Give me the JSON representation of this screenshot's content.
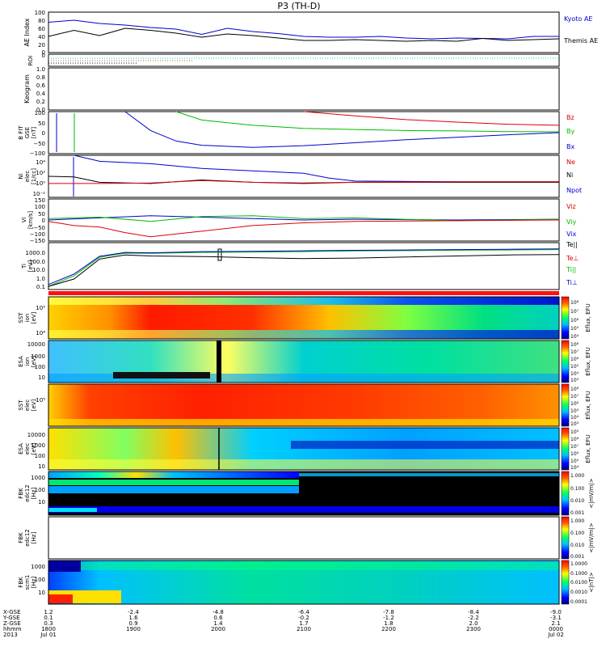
{
  "chart_data": {
    "type": "line",
    "title": "P3 (TH-D)",
    "panels": [
      {
        "id": "ae",
        "ylabel": [
          "AE Index"
        ],
        "ticks": [
          "100",
          "80",
          "60",
          "40",
          "20",
          "0"
        ],
        "legend": [
          {
            "text": "Kyoto AE",
            "color": "#0000cc"
          },
          {
            "text": "Themis AE",
            "color": "#000000"
          }
        ],
        "series": [
          {
            "name": "Kyoto AE",
            "color": "#0000cc",
            "x": [
              0,
              0.05,
              0.1,
              0.15,
              0.2,
              0.25,
              0.3,
              0.35,
              0.4,
              0.45,
              0.5,
              0.55,
              0.6,
              0.65,
              0.7,
              0.75,
              0.8,
              0.85,
              0.9,
              0.95,
              1
            ],
            "y": [
              75,
              80,
              72,
              68,
              62,
              58,
              45,
              60,
              52,
              47,
              40,
              38,
              38,
              40,
              36,
              34,
              36,
              35,
              34,
              40,
              40
            ]
          },
          {
            "name": "Themis AE",
            "color": "#000000",
            "x": [
              0,
              0.05,
              0.1,
              0.15,
              0.2,
              0.25,
              0.3,
              0.35,
              0.4,
              0.45,
              0.5,
              0.55,
              0.6,
              0.65,
              0.7,
              0.75,
              0.8,
              0.85,
              0.9,
              0.95,
              1
            ],
            "y": [
              40,
              55,
              42,
              60,
              55,
              48,
              38,
              46,
              42,
              36,
              30,
              30,
              32,
              30,
              28,
              30,
              28,
              35,
              30,
              32,
              34
            ]
          }
        ]
      },
      {
        "id": "roi",
        "ylabel": [
          "ROI"
        ],
        "ticks": [
          "0"
        ],
        "legend": []
      },
      {
        "id": "keogram",
        "ylabel": [
          "Keogram"
        ],
        "ticks": [
          "1.0",
          "0.8",
          "0.6",
          "0.4",
          "0.2",
          "0.0"
        ],
        "legend": []
      },
      {
        "id": "bfield",
        "ylabel": [
          "B FIT",
          "GSE",
          "[nT]"
        ],
        "ticks": [
          "100",
          "50",
          "0",
          "−50",
          "−100"
        ],
        "legend": [
          {
            "text": "Bz",
            "color": "#dd0000"
          },
          {
            "text": "By",
            "color": "#00bb00"
          },
          {
            "text": "Bx",
            "color": "#0000cc"
          }
        ],
        "series": [
          {
            "name": "Bz",
            "color": "#dd0000",
            "x": [
              0.5,
              0.6,
              0.7,
              0.8,
              0.9,
              1
            ],
            "y": [
              100,
              80,
              62,
              50,
              40,
              35
            ]
          },
          {
            "name": "By",
            "color": "#00bb00",
            "x": [
              0.25,
              0.3,
              0.4,
              0.5,
              0.6,
              0.7,
              0.8,
              0.9,
              1
            ],
            "y": [
              100,
              60,
              35,
              20,
              15,
              10,
              8,
              5,
              4
            ]
          },
          {
            "name": "Bx",
            "color": "#0000cc",
            "x": [
              0.15,
              0.2,
              0.25,
              0.3,
              0.4,
              0.5,
              0.6,
              0.7,
              0.8,
              0.9,
              1
            ],
            "y": [
              100,
              10,
              -40,
              -60,
              -70,
              -62,
              -48,
              -34,
              -22,
              -10,
              0
            ]
          }
        ]
      },
      {
        "id": "density",
        "ylabel": [
          "Ni",
          "elec",
          "[1/cc]"
        ],
        "ticks": [
          "10⁴",
          "10²",
          "10⁰",
          "10⁻²"
        ],
        "legend": [
          {
            "text": "Ne",
            "color": "#dd0000"
          },
          {
            "text": "Ni",
            "color": "#000000"
          },
          {
            "text": "Npot",
            "color": "#0000cc"
          }
        ],
        "series": [
          {
            "name": "Npot",
            "color": "#0000cc",
            "x": [
              0.05,
              0.1,
              0.2,
              0.3,
              0.4,
              0.5,
              0.55,
              0.6,
              0.8,
              1
            ],
            "y": [
              5,
              4,
              3.6,
              2.8,
              2.4,
              2.0,
              1.2,
              0.7,
              0.6,
              0.6
            ]
          },
          {
            "name": "Ni",
            "color": "#000000",
            "x": [
              0,
              0.05,
              0.1,
              0.2,
              0.3,
              0.4,
              0.5,
              0.6,
              0.8,
              1
            ],
            "y": [
              1.5,
              1.4,
              0.5,
              0.3,
              0.9,
              0.5,
              0.3,
              0.5,
              0.5,
              0.5
            ]
          },
          {
            "name": "Ne",
            "color": "#dd0000",
            "x": [
              0,
              0.1,
              0.2,
              0.3,
              0.4,
              0.5,
              0.6,
              0.8,
              1
            ],
            "y": [
              0.3,
              0.3,
              0.4,
              0.8,
              0.5,
              0.4,
              0.5,
              0.6,
              0.6
            ]
          }
        ]
      },
      {
        "id": "velocity",
        "ylabel": [
          "Vi",
          "[km/s]"
        ],
        "ticks": [
          "150",
          "100",
          "50",
          "0",
          "−50",
          "−100",
          "−150"
        ],
        "legend": [
          {
            "text": "Viz",
            "color": "#dd0000"
          },
          {
            "text": "Viy",
            "color": "#00bb00"
          },
          {
            "text": "Vix",
            "color": "#0000cc"
          }
        ],
        "series": [
          {
            "name": "Vix",
            "color": "#0000cc",
            "x": [
              0,
              0.1,
              0.2,
              0.3,
              0.4,
              0.5,
              0.6,
              0.8,
              1
            ],
            "y": [
              0,
              15,
              30,
              20,
              10,
              0,
              5,
              0,
              5
            ]
          },
          {
            "name": "Viy",
            "color": "#00bb00",
            "x": [
              0,
              0.1,
              0.2,
              0.3,
              0.4,
              0.5,
              0.6,
              0.8,
              1
            ],
            "y": [
              10,
              20,
              -10,
              25,
              30,
              10,
              15,
              -5,
              5
            ]
          },
          {
            "name": "Viz",
            "color": "#dd0000",
            "x": [
              0,
              0.05,
              0.1,
              0.15,
              0.2,
              0.25,
              0.3,
              0.4,
              0.5,
              0.6,
              0.8,
              1
            ],
            "y": [
              -10,
              -40,
              -50,
              -90,
              -120,
              -100,
              -80,
              -40,
              -20,
              -10,
              -5,
              0
            ]
          }
        ]
      },
      {
        "id": "temperature",
        "ylabel": [
          "Ti",
          "[eV]"
        ],
        "ticks": [
          "1000.0",
          "100.0",
          "10.0",
          "1.0",
          "0.1"
        ],
        "legend": [
          {
            "text": "Te||",
            "color": "#000000"
          },
          {
            "text": "Te⊥",
            "color": "#dd0000"
          },
          {
            "text": "Ti||",
            "color": "#00bb00"
          },
          {
            "text": "Ti⊥",
            "color": "#0000cc"
          }
        ],
        "series": [
          {
            "name": "Ti||",
            "color": "#00bb00",
            "x": [
              0,
              0.05,
              0.1,
              0.15,
              0.2,
              0.3,
              0.4,
              0.5,
              0.6,
              0.7,
              0.8,
              0.9,
              1
            ],
            "y": [
              0.2,
              2,
              120,
              300,
              280,
              350,
              380,
              420,
              480,
              520,
              560,
              600,
              650
            ]
          },
          {
            "name": "Ti⊥",
            "color": "#0000cc",
            "x": [
              0,
              0.05,
              0.1,
              0.15,
              0.2,
              0.3,
              0.4,
              0.5,
              0.6,
              0.7,
              0.8,
              0.9,
              1
            ],
            "y": [
              0.3,
              3,
              150,
              350,
              320,
              420,
              450,
              500,
              550,
              600,
              650,
              700,
              750
            ]
          },
          {
            "name": "Te||",
            "color": "#000000",
            "x": [
              0,
              0.05,
              0.1,
              0.15,
              0.2,
              0.3,
              0.4,
              0.5,
              0.6,
              0.7,
              0.8,
              0.9,
              1
            ],
            "y": [
              0.2,
              1,
              80,
              200,
              160,
              140,
              110,
              90,
              100,
              130,
              160,
              200,
              220
            ]
          }
        ]
      },
      {
        "id": "sst_ion",
        "ylabel": [
          "SST",
          "ion",
          "[eV]"
        ],
        "ticks": [
          "10⁵",
          "10⁴"
        ],
        "colorbar": {
          "label": "Eflux, EFU",
          "ticks": [
            "10⁸",
            "10⁷",
            "10⁶",
            "10⁵",
            "10⁴"
          ]
        }
      },
      {
        "id": "esa_ion",
        "ylabel": [
          "ESA",
          "ion",
          "[eV]"
        ],
        "ticks": [
          "10000",
          "1000",
          "100",
          "10"
        ],
        "colorbar": {
          "label": "Eflux, EFU",
          "ticks": [
            "10⁸",
            "10⁷",
            "10⁶",
            "10⁵",
            "10⁴",
            "10³"
          ]
        }
      },
      {
        "id": "sst_elec",
        "ylabel": [
          "SST",
          "elec",
          "[eV]"
        ],
        "ticks": [
          "10⁵"
        ],
        "colorbar": {
          "label": "Eflux, EFU",
          "ticks": [
            "10⁸",
            "10⁷",
            "10⁶",
            "10⁵",
            "10⁴",
            "10³"
          ]
        }
      },
      {
        "id": "esa_elec",
        "ylabel": [
          "ESA",
          "elec",
          "[eV]"
        ],
        "ticks": [
          "10000",
          "1000",
          "100",
          "10"
        ],
        "colorbar": {
          "label": "Eflux, EFU",
          "ticks": [
            "10⁹",
            "10⁸",
            "10⁷",
            "10⁶",
            "10⁵",
            "10⁴"
          ]
        }
      },
      {
        "id": "fbk_edc12_a",
        "ylabel": [
          "FBK",
          "edc12",
          "[Hz]"
        ],
        "ticks": [
          "1000",
          "100",
          "10"
        ],
        "colorbar": {
          "label": "<|mV/m|>",
          "ticks": [
            "1.000",
            "0.100",
            "0.010",
            "0.001"
          ]
        }
      },
      {
        "id": "fbk_edc12_b",
        "ylabel": [
          "FBK",
          "edc12",
          "[Hz]"
        ],
        "ticks": [],
        "colorbar": {
          "label": "<|mV/m|>",
          "ticks": [
            "1.000",
            "0.100",
            "0.010",
            "0.001"
          ]
        }
      },
      {
        "id": "fbk_scm1",
        "ylabel": [
          "FBK",
          "scm1",
          "[Hz]"
        ],
        "ticks": [
          "1000",
          "100",
          "10"
        ],
        "colorbar": {
          "label": "<|nT|>",
          "ticks": [
            "1.0000",
            "0.1000",
            "0.0100",
            "0.0010",
            "0.0001"
          ]
        }
      }
    ],
    "xaxis": {
      "row_labels": [
        "X-GSE",
        "Y-GSE",
        "Z-GSE",
        "hhmm",
        "2013"
      ],
      "columns": [
        {
          "x": "1.2",
          "y": "0.1",
          "z": "0.3",
          "time": "1800",
          "date": "Jul 01"
        },
        {
          "x": "-2.4",
          "y": "1.6",
          "z": "0.9",
          "time": "1900",
          "date": ""
        },
        {
          "x": "-4.8",
          "y": "0.6",
          "z": "1.4",
          "time": "2000",
          "date": ""
        },
        {
          "x": "-6.4",
          "y": "-0.2",
          "z": "1.7",
          "time": "2100",
          "date": ""
        },
        {
          "x": "-7.8",
          "y": "-1.2",
          "z": "1.8",
          "time": "2200",
          "date": ""
        },
        {
          "x": "-8.4",
          "y": "-2.2",
          "z": "2.0",
          "time": "2300",
          "date": ""
        },
        {
          "x": "-9.0",
          "y": "-3.1",
          "z": "2.1",
          "time": "0000",
          "date": "Jul 02"
        }
      ]
    }
  }
}
